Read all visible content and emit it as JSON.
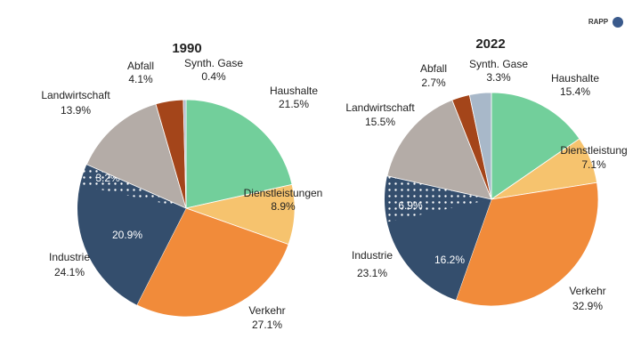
{
  "brand": "RAPP",
  "chart_data": [
    {
      "type": "pie",
      "title": "1990",
      "segments": [
        {
          "name": "Haushalte",
          "value": 21.5,
          "value_label": "21.5%",
          "color": "#72cf9b"
        },
        {
          "name": "Dienstleistungen",
          "value": 8.9,
          "value_label": "8.9%",
          "color": "#f6c36e"
        },
        {
          "name": "Verkehr",
          "value": 27.1,
          "value_label": "27.1%",
          "color": "#f18b3a"
        },
        {
          "name": "Industrie",
          "value": 24.1,
          "value_label": "24.1%",
          "color": "#344e6d",
          "parts": [
            {
              "value": 20.9,
              "value_label": "20.9%",
              "pattern": "solid"
            },
            {
              "value": 3.2,
              "value_label": "3.2%",
              "pattern": "dots"
            }
          ]
        },
        {
          "name": "Landwirtschaft",
          "value": 13.9,
          "value_label": "13.9%",
          "color": "#b4aca7"
        },
        {
          "name": "Abfall",
          "value": 4.1,
          "value_label": "4.1%",
          "color": "#a4451a"
        },
        {
          "name": "Synth. Gase",
          "value": 0.4,
          "value_label": "0.4%",
          "color": "#a8b8c9"
        }
      ]
    },
    {
      "type": "pie",
      "title": "2022",
      "segments": [
        {
          "name": "Haushalte",
          "value": 15.4,
          "value_label": "15.4%",
          "color": "#72cf9b"
        },
        {
          "name": "Dienstleistung",
          "value": 7.1,
          "value_label": "7.1%",
          "color": "#f6c36e"
        },
        {
          "name": "Verkehr",
          "value": 32.9,
          "value_label": "32.9%",
          "color": "#f18b3a"
        },
        {
          "name": "Industrie",
          "value": 23.1,
          "value_label": "23.1%",
          "color": "#344e6d",
          "parts": [
            {
              "value": 16.2,
              "value_label": "16.2%",
              "pattern": "solid"
            },
            {
              "value": 6.9,
              "value_label": "6.9%",
              "pattern": "dots"
            }
          ]
        },
        {
          "name": "Landwirtschaft",
          "value": 15.5,
          "value_label": "15.5%",
          "color": "#b4aca7"
        },
        {
          "name": "Abfall",
          "value": 2.7,
          "value_label": "2.7%",
          "color": "#a4451a"
        },
        {
          "name": "Synth. Gase",
          "value": 3.3,
          "value_label": "3.3%",
          "color": "#a8b8c9"
        }
      ]
    }
  ]
}
